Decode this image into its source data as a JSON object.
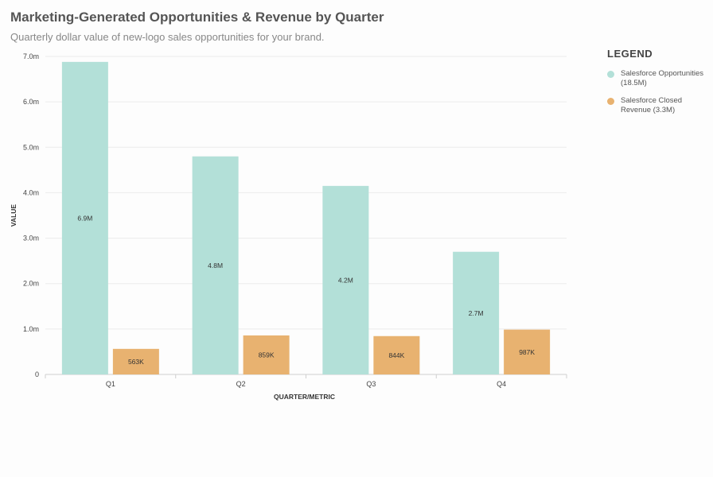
{
  "header": {
    "title": "Marketing-Generated Opportunities & Revenue by Quarter",
    "subtitle": "Quarterly dollar value of new-logo sales opportunities for your brand."
  },
  "legend": {
    "title": "LEGEND",
    "items": [
      {
        "label": "Salesforce Opportunities (18.5M)",
        "color": "#b3e0d8"
      },
      {
        "label": "Salesforce Closed Revenue (3.3M)",
        "color": "#e8b270"
      }
    ]
  },
  "chart_data": {
    "type": "bar",
    "xlabel": "QUARTER/METRIC",
    "ylabel": "VALUE",
    "ylim": [
      0,
      7000000
    ],
    "yticks": [
      0,
      1000000,
      2000000,
      3000000,
      4000000,
      5000000,
      6000000,
      7000000
    ],
    "ytick_labels": [
      "0",
      "1.0m",
      "2.0m",
      "3.0m",
      "4.0m",
      "5.0m",
      "6.0m",
      "7.0m"
    ],
    "grid": true,
    "categories": [
      "Q1",
      "Q2",
      "Q3",
      "Q4"
    ],
    "series": [
      {
        "name": "Salesforce Opportunities (18.5M)",
        "color": "#b3e0d8",
        "values": [
          6880000,
          4800000,
          4150000,
          2700000
        ],
        "labels": [
          "6.9M",
          "4.8M",
          "4.2M",
          "2.7M"
        ]
      },
      {
        "name": "Salesforce Closed Revenue (3.3M)",
        "color": "#e8b270",
        "values": [
          563000,
          859000,
          844000,
          987000
        ],
        "labels": [
          "563K",
          "859K",
          "844K",
          "987K"
        ]
      }
    ]
  }
}
